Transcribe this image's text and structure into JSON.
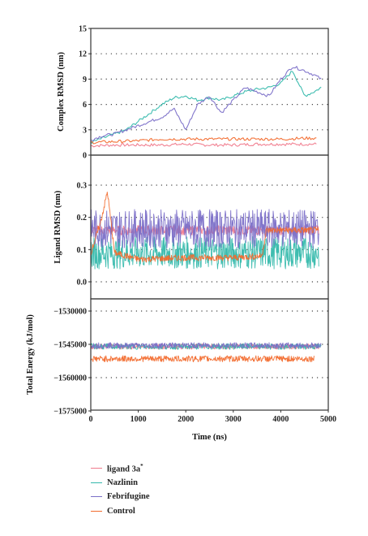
{
  "chart_data": [
    {
      "type": "line",
      "ylabel": "Complex RMSD (nm)",
      "ylim": [
        0,
        15
      ],
      "yticks": [
        "0",
        "3",
        "6",
        "9",
        "12",
        "15"
      ],
      "xlim": [
        0,
        5000
      ],
      "grid": "horizontal dotted",
      "series": [
        {
          "name": "ligand 3a*",
          "color": "#f07a8c",
          "x": [
            0,
            500,
            1000,
            1500,
            2000,
            2500,
            3000,
            3500,
            4000,
            4500,
            4750
          ],
          "y": [
            1.1,
            1.2,
            1.2,
            1.2,
            1.3,
            1.2,
            1.2,
            1.3,
            1.3,
            1.3,
            1.3
          ]
        },
        {
          "name": "Nazlinin",
          "color": "#35b9ac",
          "x": [
            0,
            250,
            500,
            750,
            1000,
            1250,
            1500,
            1750,
            2000,
            2250,
            2500,
            2750,
            3000,
            3250,
            3500,
            3750,
            4000,
            4250,
            4500,
            4700,
            4850
          ],
          "y": [
            1.5,
            2.0,
            2.5,
            3.0,
            4.0,
            5.0,
            6.0,
            6.8,
            7.0,
            6.5,
            6.8,
            6.5,
            7.0,
            7.5,
            7.8,
            8.0,
            8.5,
            10.0,
            7.0,
            7.5,
            8.0
          ]
        },
        {
          "name": "Febrifugine",
          "color": "#7b6fc8",
          "x": [
            0,
            250,
            500,
            750,
            1000,
            1250,
            1500,
            1750,
            2000,
            2250,
            2500,
            2750,
            3000,
            3250,
            3500,
            3750,
            4000,
            4250,
            4500,
            4700,
            4850
          ],
          "y": [
            1.8,
            2.3,
            2.5,
            3.0,
            3.5,
            4.0,
            4.5,
            5.5,
            3.0,
            6.0,
            7.0,
            5.0,
            6.5,
            8.0,
            7.5,
            7.0,
            9.0,
            10.5,
            10.0,
            9.5,
            9.0
          ]
        },
        {
          "name": "Control",
          "color": "#f26b2e",
          "x": [
            0,
            500,
            1000,
            1500,
            2000,
            2500,
            3000,
            3500,
            4000,
            4500,
            4750
          ],
          "y": [
            1.5,
            1.6,
            1.7,
            1.9,
            1.9,
            1.9,
            1.9,
            1.9,
            1.9,
            2.0,
            2.0
          ]
        }
      ]
    },
    {
      "type": "line",
      "ylabel": "Ligand RMSD (nm)",
      "ylim": [
        0,
        0.3
      ],
      "yticks": [
        "0.0",
        "0.1",
        "0.2",
        "0.3"
      ],
      "xlim": [
        0,
        5000
      ],
      "grid": "horizontal dotted",
      "series": [
        {
          "name": "ligand 3a*",
          "color": "#f07a8c",
          "x": [
            0,
            4800
          ],
          "y": [
            0.16,
            0.16
          ],
          "noise": 0.015
        },
        {
          "name": "Nazlinin",
          "color": "#35b9ac",
          "x": [
            0,
            4800
          ],
          "y": [
            0.09,
            0.09
          ],
          "noise": 0.05
        },
        {
          "name": "Febrifugine",
          "color": "#7b6fc8",
          "x": [
            0,
            4800
          ],
          "y": [
            0.165,
            0.165
          ],
          "noise": 0.06
        },
        {
          "name": "Control",
          "color": "#f26b2e",
          "x": [
            0,
            200,
            350,
            500,
            1000,
            2000,
            3000,
            3600,
            3700,
            4000,
            4800
          ],
          "y": [
            0.09,
            0.18,
            0.28,
            0.09,
            0.07,
            0.075,
            0.075,
            0.08,
            0.16,
            0.16,
            0.16
          ],
          "noise": 0.01
        }
      ]
    },
    {
      "type": "line",
      "ylabel": "Total Energy (kJ/mol)",
      "ylim": [
        -1575000,
        -1530000
      ],
      "yticks": [
        "−1530000",
        "−1545000",
        "−1560000",
        "−1575000"
      ],
      "xlim": [
        0,
        5000
      ],
      "xticks": [
        "0",
        "1000",
        "2000",
        "3000",
        "4000",
        "5000"
      ],
      "xlabel": "Time (ns)",
      "grid": "horizontal dotted",
      "series": [
        {
          "name": "ligand 3a*",
          "color": "#f07a8c",
          "x": [
            0,
            4800
          ],
          "y": [
            -1546000,
            -1546000
          ],
          "noise": 1200
        },
        {
          "name": "Nazlinin",
          "color": "#35b9ac",
          "x": [
            0,
            4850
          ],
          "y": [
            -1546000,
            -1546000
          ],
          "noise": 1300
        },
        {
          "name": "Febrifugine",
          "color": "#7b6fc8",
          "x": [
            0,
            4850
          ],
          "y": [
            -1545500,
            -1545500
          ],
          "noise": 1300
        },
        {
          "name": "Control",
          "color": "#f26b2e",
          "x": [
            0,
            4700
          ],
          "y": [
            -1551500,
            -1551500
          ],
          "noise": 1400
        }
      ]
    }
  ],
  "legend": {
    "placement": "bottom-left",
    "items": [
      {
        "label": "ligand 3a",
        "sup": "*",
        "color": "#f07a8c"
      },
      {
        "label": "Nazlinin",
        "sup": "",
        "color": "#35b9ac"
      },
      {
        "label": "Febrifugine",
        "sup": "",
        "color": "#7b6fc8"
      },
      {
        "label": "Control",
        "sup": "",
        "color": "#f26b2e"
      }
    ]
  }
}
